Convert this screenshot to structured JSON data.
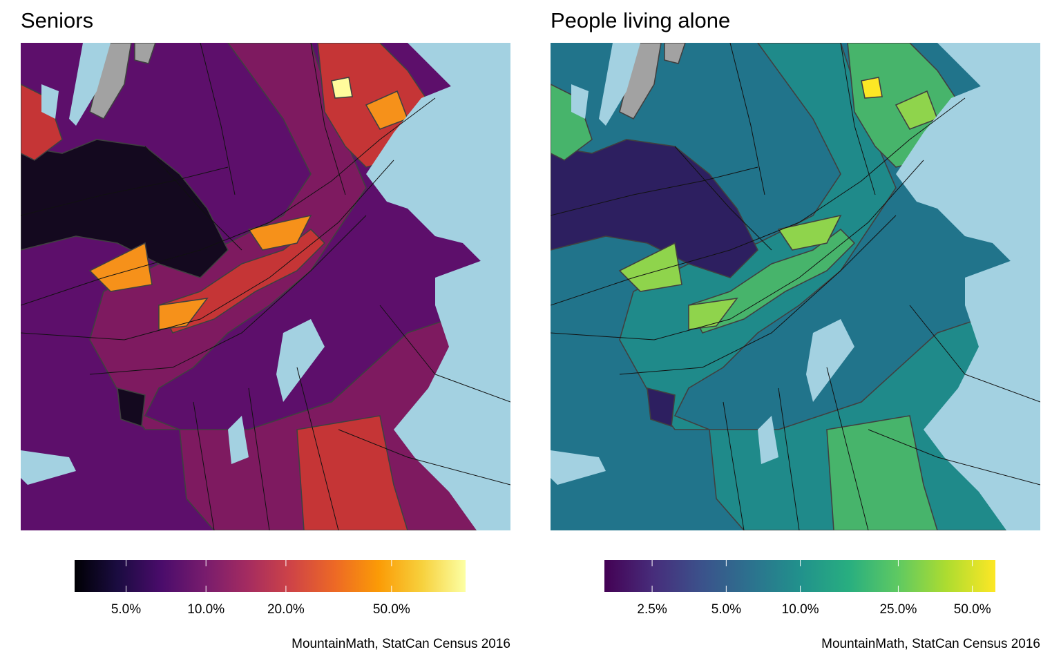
{
  "panels": [
    {
      "title": "Seniors",
      "caption": "MountainMath, StatCan Census 2016",
      "palette": "inferno",
      "legend": {
        "ticks": [
          {
            "label": "5.0%",
            "value": 0.05
          },
          {
            "label": "10.0%",
            "value": 0.1
          },
          {
            "label": "20.0%",
            "value": 0.2
          },
          {
            "label": "50.0%",
            "value": 0.5
          }
        ],
        "range": [
          0.032,
          0.95
        ],
        "scale": "log",
        "colors": [
          "#000004",
          "#1b0c41",
          "#4a0c6b",
          "#781c6d",
          "#a52c60",
          "#cf4446",
          "#ed6925",
          "#fb9b06",
          "#f7d13d",
          "#fcffa4"
        ]
      },
      "colors": {
        "water": "#a3d1e1",
        "grey_area": "#a2a2a2",
        "boundary": "#404040",
        "base": "#5d0f6b",
        "mid": "#7e1a60",
        "dark": "#14091f",
        "warm": "#c53536",
        "orange": "#f6911a",
        "bright": "#fffc9c"
      }
    },
    {
      "title": "People living alone",
      "caption": "MountainMath, StatCan Census 2016",
      "palette": "viridis",
      "legend": {
        "ticks": [
          {
            "label": "2.5%",
            "value": 0.025
          },
          {
            "label": "5.0%",
            "value": 0.05
          },
          {
            "label": "10.0%",
            "value": 0.1
          },
          {
            "label": "25.0%",
            "value": 0.25
          },
          {
            "label": "50.0%",
            "value": 0.5
          }
        ],
        "range": [
          0.016,
          0.62
        ],
        "scale": "log",
        "colors": [
          "#440154",
          "#472d7b",
          "#3b528b",
          "#2c728e",
          "#21918c",
          "#28ae80",
          "#5ec962",
          "#addc30",
          "#fde725"
        ]
      },
      "colors": {
        "water": "#a3d1e1",
        "grey_area": "#a2a2a2",
        "boundary": "#404040",
        "base": "#21748b",
        "mid": "#1f8a8a",
        "dark": "#2d1f60",
        "warm": "#47b46b",
        "orange": "#8fd44c",
        "bright": "#fde725"
      }
    }
  ]
}
